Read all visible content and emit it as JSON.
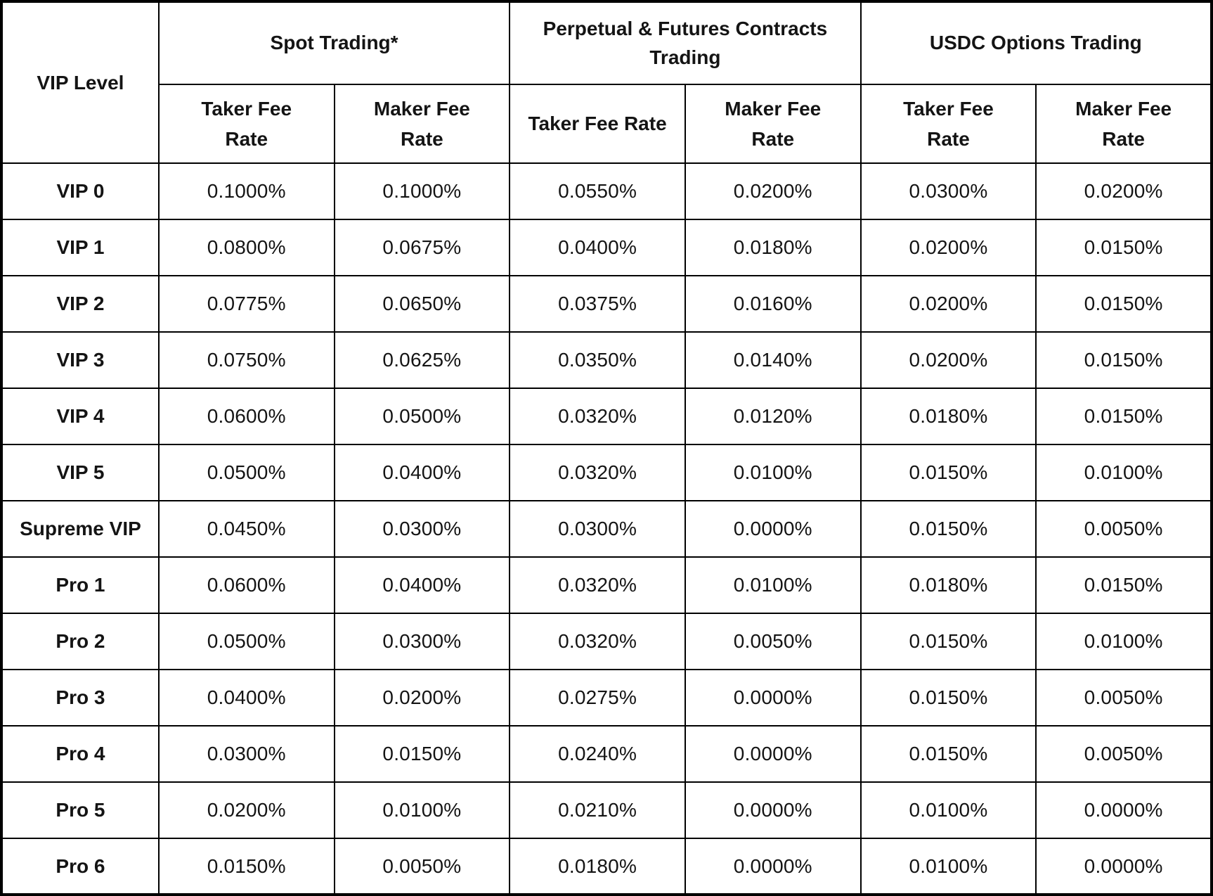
{
  "colors": {
    "background": "#ffffff",
    "border": "#000000",
    "text": "#141414"
  },
  "table": {
    "corner_header": "VIP Level",
    "sections": [
      {
        "label": "Spot Trading*"
      },
      {
        "label": "Perpetual & Futures Contracts Trading"
      },
      {
        "label": "USDC Options Trading"
      }
    ],
    "subheaders": {
      "spot_taker": "Taker Fee\nRate",
      "spot_maker": "Maker Fee\nRate",
      "perp_taker": "Taker Fee Rate",
      "perp_maker": "Maker Fee\nRate",
      "opt_taker": "Taker Fee\nRate",
      "opt_maker": "Maker Fee\nRate"
    },
    "rows": [
      {
        "level": "VIP 0",
        "spot_taker": "0.1000%",
        "spot_maker": "0.1000%",
        "perp_taker": "0.0550%",
        "perp_maker": "0.0200%",
        "opt_taker": "0.0300%",
        "opt_maker": "0.0200%"
      },
      {
        "level": "VIP 1",
        "spot_taker": "0.0800%",
        "spot_maker": "0.0675%",
        "perp_taker": "0.0400%",
        "perp_maker": "0.0180%",
        "opt_taker": "0.0200%",
        "opt_maker": "0.0150%"
      },
      {
        "level": "VIP 2",
        "spot_taker": "0.0775%",
        "spot_maker": "0.0650%",
        "perp_taker": "0.0375%",
        "perp_maker": "0.0160%",
        "opt_taker": "0.0200%",
        "opt_maker": "0.0150%"
      },
      {
        "level": "VIP 3",
        "spot_taker": "0.0750%",
        "spot_maker": "0.0625%",
        "perp_taker": "0.0350%",
        "perp_maker": "0.0140%",
        "opt_taker": "0.0200%",
        "opt_maker": "0.0150%"
      },
      {
        "level": "VIP 4",
        "spot_taker": "0.0600%",
        "spot_maker": "0.0500%",
        "perp_taker": "0.0320%",
        "perp_maker": "0.0120%",
        "opt_taker": "0.0180%",
        "opt_maker": "0.0150%"
      },
      {
        "level": "VIP 5",
        "spot_taker": "0.0500%",
        "spot_maker": "0.0400%",
        "perp_taker": "0.0320%",
        "perp_maker": "0.0100%",
        "opt_taker": "0.0150%",
        "opt_maker": "0.0100%"
      },
      {
        "level": "Supreme VIP",
        "spot_taker": "0.0450%",
        "spot_maker": "0.0300%",
        "perp_taker": "0.0300%",
        "perp_maker": "0.0000%",
        "opt_taker": "0.0150%",
        "opt_maker": "0.0050%"
      },
      {
        "level": "Pro 1",
        "spot_taker": "0.0600%",
        "spot_maker": "0.0400%",
        "perp_taker": "0.0320%",
        "perp_maker": "0.0100%",
        "opt_taker": "0.0180%",
        "opt_maker": "0.0150%"
      },
      {
        "level": "Pro 2",
        "spot_taker": "0.0500%",
        "spot_maker": "0.0300%",
        "perp_taker": "0.0320%",
        "perp_maker": "0.0050%",
        "opt_taker": "0.0150%",
        "opt_maker": "0.0100%"
      },
      {
        "level": "Pro 3",
        "spot_taker": "0.0400%",
        "spot_maker": "0.0200%",
        "perp_taker": "0.0275%",
        "perp_maker": "0.0000%",
        "opt_taker": "0.0150%",
        "opt_maker": "0.0050%"
      },
      {
        "level": "Pro 4",
        "spot_taker": "0.0300%",
        "spot_maker": "0.0150%",
        "perp_taker": "0.0240%",
        "perp_maker": "0.0000%",
        "opt_taker": "0.0150%",
        "opt_maker": "0.0050%"
      },
      {
        "level": "Pro 5",
        "spot_taker": "0.0200%",
        "spot_maker": "0.0100%",
        "perp_taker": "0.0210%",
        "perp_maker": "0.0000%",
        "opt_taker": "0.0100%",
        "opt_maker": "0.0000%"
      },
      {
        "level": "Pro 6",
        "spot_taker": "0.0150%",
        "spot_maker": "0.0050%",
        "perp_taker": "0.0180%",
        "perp_maker": "0.0000%",
        "opt_taker": "0.0100%",
        "opt_maker": "0.0000%"
      }
    ]
  }
}
